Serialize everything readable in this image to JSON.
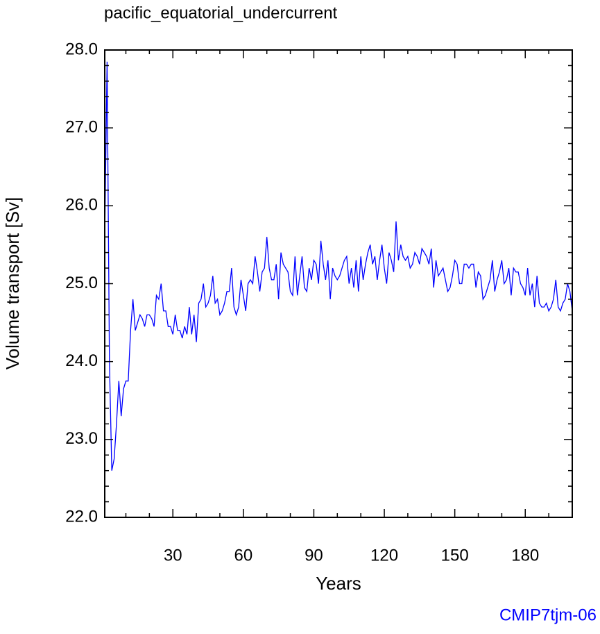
{
  "chart_data": {
    "type": "line",
    "title": "pacific_equatorial_undercurrent",
    "subtitle": "CMIP7tjm-06",
    "xlabel": "Years",
    "ylabel": "Volume transport [Sv]",
    "xlim": [
      1,
      200
    ],
    "ylim": [
      22,
      28
    ],
    "xticks": [
      30,
      60,
      90,
      120,
      150,
      180
    ],
    "yticks": [
      {
        "value": 22,
        "label": "22.0"
      },
      {
        "value": 23,
        "label": "23.0"
      },
      {
        "value": 24,
        "label": "24.0"
      },
      {
        "value": 25,
        "label": "25.0"
      },
      {
        "value": 26,
        "label": "26.0"
      },
      {
        "value": 27,
        "label": "27.0"
      },
      {
        "value": 28,
        "label": "28.0"
      }
    ],
    "xminorticks": [
      10,
      20,
      40,
      50,
      70,
      80,
      100,
      110,
      130,
      140,
      160,
      170,
      190,
      200
    ],
    "yminorticks": [
      22.2,
      22.4,
      22.6,
      22.8,
      23.2,
      23.4,
      23.6,
      23.8,
      24.2,
      24.4,
      24.6,
      24.8,
      25.2,
      25.4,
      25.6,
      25.8,
      26.2,
      26.4,
      26.6,
      26.8,
      27.2,
      27.4,
      27.6,
      27.8
    ],
    "x": [
      1,
      2,
      3,
      4,
      5,
      6,
      7,
      8,
      9,
      10,
      11,
      12,
      13,
      14,
      15,
      16,
      17,
      18,
      19,
      20,
      21,
      22,
      23,
      24,
      25,
      26,
      27,
      28,
      29,
      30,
      31,
      32,
      33,
      34,
      35,
      36,
      37,
      38,
      39,
      40,
      41,
      42,
      43,
      44,
      45,
      46,
      47,
      48,
      49,
      50,
      51,
      52,
      53,
      54,
      55,
      56,
      57,
      58,
      59,
      60,
      61,
      62,
      63,
      64,
      65,
      66,
      67,
      68,
      69,
      70,
      71,
      72,
      73,
      74,
      75,
      76,
      77,
      78,
      79,
      80,
      81,
      82,
      83,
      84,
      85,
      86,
      87,
      88,
      89,
      90,
      91,
      92,
      93,
      94,
      95,
      96,
      97,
      98,
      99,
      100,
      101,
      102,
      103,
      104,
      105,
      106,
      107,
      108,
      109,
      110,
      111,
      112,
      113,
      114,
      115,
      116,
      117,
      118,
      119,
      120,
      121,
      122,
      123,
      124,
      125,
      126,
      127,
      128,
      129,
      130,
      131,
      132,
      133,
      134,
      135,
      136,
      137,
      138,
      139,
      140,
      141,
      142,
      143,
      144,
      145,
      146,
      147,
      148,
      149,
      150,
      151,
      152,
      153,
      154,
      155,
      156,
      157,
      158,
      159,
      160,
      161,
      162,
      163,
      164,
      165,
      166,
      167,
      168,
      169,
      170,
      171,
      172,
      173,
      174,
      175,
      176,
      177,
      178,
      179,
      180,
      181,
      182,
      183,
      184,
      185,
      186,
      187,
      188,
      189,
      190,
      191,
      192,
      193,
      194,
      195,
      196,
      197,
      198,
      199,
      200
    ],
    "series": [
      {
        "color": "#0000ff",
        "values": [
          25.6,
          27.85,
          24.0,
          22.6,
          22.75,
          23.2,
          23.75,
          23.3,
          23.65,
          23.75,
          23.75,
          24.4,
          24.8,
          24.4,
          24.5,
          24.6,
          24.55,
          24.45,
          24.6,
          24.6,
          24.55,
          24.45,
          24.85,
          24.8,
          25.0,
          24.65,
          24.65,
          24.45,
          24.45,
          24.35,
          24.6,
          24.4,
          24.4,
          24.3,
          24.45,
          24.35,
          24.7,
          24.35,
          24.6,
          24.25,
          24.75,
          24.8,
          25.0,
          24.7,
          24.75,
          24.85,
          25.1,
          24.75,
          24.8,
          24.6,
          24.65,
          24.75,
          24.9,
          24.9,
          25.2,
          24.7,
          24.6,
          24.7,
          25.05,
          24.85,
          24.65,
          25.0,
          25.05,
          25.0,
          25.35,
          25.15,
          24.9,
          25.15,
          25.2,
          25.6,
          25.2,
          25.05,
          25.05,
          25.25,
          24.8,
          25.4,
          25.25,
          25.2,
          25.15,
          24.9,
          24.85,
          25.35,
          24.85,
          25.1,
          25.35,
          24.95,
          24.9,
          25.2,
          25.05,
          25.3,
          25.25,
          25.0,
          25.55,
          25.25,
          25.05,
          25.3,
          24.8,
          25.2,
          25.1,
          25.05,
          25.1,
          25.2,
          25.3,
          25.35,
          25.0,
          25.2,
          24.95,
          25.3,
          24.9,
          25.35,
          25.05,
          25.25,
          25.4,
          25.5,
          25.25,
          25.35,
          25.05,
          25.3,
          25.5,
          25.2,
          25.0,
          25.4,
          25.3,
          25.15,
          25.8,
          25.3,
          25.5,
          25.35,
          25.3,
          25.35,
          25.2,
          25.25,
          25.4,
          25.35,
          25.25,
          25.45,
          25.4,
          25.35,
          25.25,
          25.45,
          24.95,
          25.3,
          25.1,
          25.15,
          25.2,
          25.05,
          24.9,
          24.95,
          25.1,
          25.3,
          25.25,
          25.0,
          25.0,
          25.25,
          25.25,
          25.2,
          25.25,
          25.25,
          24.95,
          25.15,
          25.1,
          24.8,
          24.85,
          24.95,
          25.05,
          25.3,
          24.9,
          25.05,
          25.15,
          25.3,
          25.0,
          25.05,
          25.2,
          24.85,
          25.2,
          25.15,
          25.15,
          25.0,
          24.95,
          24.85,
          25.2,
          24.85,
          25.0,
          24.7,
          25.1,
          24.75,
          24.7,
          24.7,
          24.75,
          24.65,
          24.7,
          24.8,
          25.05,
          24.7,
          24.65,
          24.75,
          24.8,
          25.0,
          24.9,
          24.65
        ]
      }
    ]
  }
}
